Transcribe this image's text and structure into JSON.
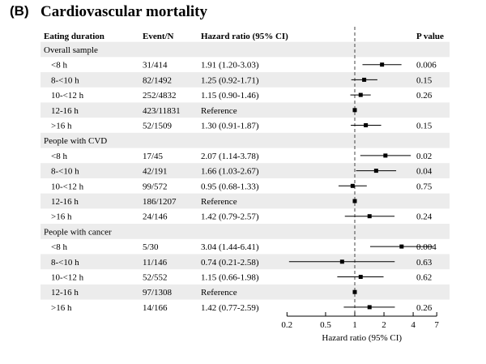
{
  "panel_label": "(B)",
  "title": "Cardiovascular mortality",
  "chart_data": {
    "type": "forest",
    "title": "Cardiovascular mortality",
    "xlabel": "Hazard ratio (95% CI)",
    "x_scale": "log",
    "reference_line": 1,
    "xticks": [
      0.2,
      0.5,
      1,
      2,
      4,
      7
    ],
    "xtick_labels": [
      "0.2",
      "0.5",
      "1",
      "2",
      "4",
      "7"
    ],
    "columns": [
      "Eating duration",
      "Event/N",
      "Hazard ratio (95% CI)",
      "P value"
    ],
    "groups": [
      {
        "name": "Overall sample",
        "rows": [
          {
            "label": "<8 h",
            "events": "31/414",
            "hr_text": "1.91 (1.20-3.03)",
            "hr": 1.91,
            "lo": 1.2,
            "hi": 3.03,
            "p": "0.006"
          },
          {
            "label": "8-<10 h",
            "events": "82/1492",
            "hr_text": "1.25 (0.92-1.71)",
            "hr": 1.25,
            "lo": 0.92,
            "hi": 1.71,
            "p": "0.15"
          },
          {
            "label": "10-<12 h",
            "events": "252/4832",
            "hr_text": "1.15 (0.90-1.46)",
            "hr": 1.15,
            "lo": 0.9,
            "hi": 1.46,
            "p": "0.26"
          },
          {
            "label": "12-16 h",
            "events": "423/11831",
            "hr_text": "Reference",
            "hr": 1,
            "lo": null,
            "hi": null,
            "p": ""
          },
          {
            "label": ">16 h",
            "events": "52/1509",
            "hr_text": "1.30 (0.91-1.87)",
            "hr": 1.3,
            "lo": 0.91,
            "hi": 1.87,
            "p": "0.15"
          }
        ]
      },
      {
        "name": "People with CVD",
        "rows": [
          {
            "label": "<8 h",
            "events": "17/45",
            "hr_text": "2.07 (1.14-3.78)",
            "hr": 2.07,
            "lo": 1.14,
            "hi": 3.78,
            "p": "0.02"
          },
          {
            "label": "8-<10 h",
            "events": "42/191",
            "hr_text": "1.66 (1.03-2.67)",
            "hr": 1.66,
            "lo": 1.03,
            "hi": 2.67,
            "p": "0.04"
          },
          {
            "label": "10-<12 h",
            "events": "99/572",
            "hr_text": "0.95 (0.68-1.33)",
            "hr": 0.95,
            "lo": 0.68,
            "hi": 1.33,
            "p": "0.75"
          },
          {
            "label": "12-16 h",
            "events": "186/1207",
            "hr_text": "Reference",
            "hr": 1,
            "lo": null,
            "hi": null,
            "p": ""
          },
          {
            "label": ">16 h",
            "events": "24/146",
            "hr_text": "1.42 (0.79-2.57)",
            "hr": 1.42,
            "lo": 0.79,
            "hi": 2.57,
            "p": "0.24"
          }
        ]
      },
      {
        "name": "People with cancer",
        "rows": [
          {
            "label": "<8 h",
            "events": "5/30",
            "hr_text": "3.04 (1.44-6.41)",
            "hr": 3.04,
            "lo": 1.44,
            "hi": 6.41,
            "p": "0.004"
          },
          {
            "label": "8-<10 h",
            "events": "11/146",
            "hr_text": "0.74 (0.21-2.58)",
            "hr": 0.74,
            "lo": 0.21,
            "hi": 2.58,
            "p": "0.63"
          },
          {
            "label": "10-<12 h",
            "events": "52/552",
            "hr_text": "1.15 (0.66-1.98)",
            "hr": 1.15,
            "lo": 0.66,
            "hi": 1.98,
            "p": "0.62"
          },
          {
            "label": "12-16 h",
            "events": "97/1308",
            "hr_text": "Reference",
            "hr": 1,
            "lo": null,
            "hi": null,
            "p": ""
          },
          {
            "label": ">16 h",
            "events": "14/166",
            "hr_text": "1.42 (0.77-2.59)",
            "hr": 1.42,
            "lo": 0.77,
            "hi": 2.59,
            "p": "0.26"
          }
        ]
      }
    ],
    "colors": {
      "stripe": "#ececec",
      "marker": "#000000",
      "reference_line": "#444444"
    }
  }
}
